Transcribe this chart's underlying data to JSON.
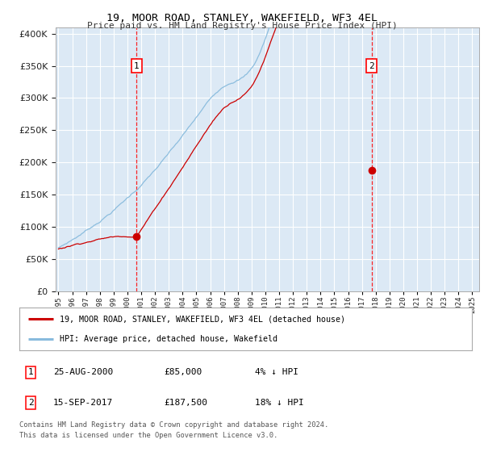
{
  "title": "19, MOOR ROAD, STANLEY, WAKEFIELD, WF3 4EL",
  "subtitle": "Price paid vs. HM Land Registry's House Price Index (HPI)",
  "ytick_values": [
    0,
    50000,
    100000,
    150000,
    200000,
    250000,
    300000,
    350000,
    400000
  ],
  "ylim": [
    0,
    410000
  ],
  "xlim_start": 1994.8,
  "xlim_end": 2025.5,
  "background_color": "#dce9f5",
  "figure_bg_color": "#ffffff",
  "red_line_color": "#cc0000",
  "blue_line_color": "#88bbdd",
  "marker1_x": 2000.65,
  "marker1_y": 85000,
  "marker2_x": 2017.72,
  "marker2_y": 187500,
  "legend_line1": "19, MOOR ROAD, STANLEY, WAKEFIELD, WF3 4EL (detached house)",
  "legend_line2": "HPI: Average price, detached house, Wakefield",
  "table_row1": [
    "1",
    "25-AUG-2000",
    "£85,000",
    "4% ↓ HPI"
  ],
  "table_row2": [
    "2",
    "15-SEP-2017",
    "£187,500",
    "18% ↓ HPI"
  ],
  "footnote1": "Contains HM Land Registry data © Crown copyright and database right 2024.",
  "footnote2": "This data is licensed under the Open Government Licence v3.0."
}
